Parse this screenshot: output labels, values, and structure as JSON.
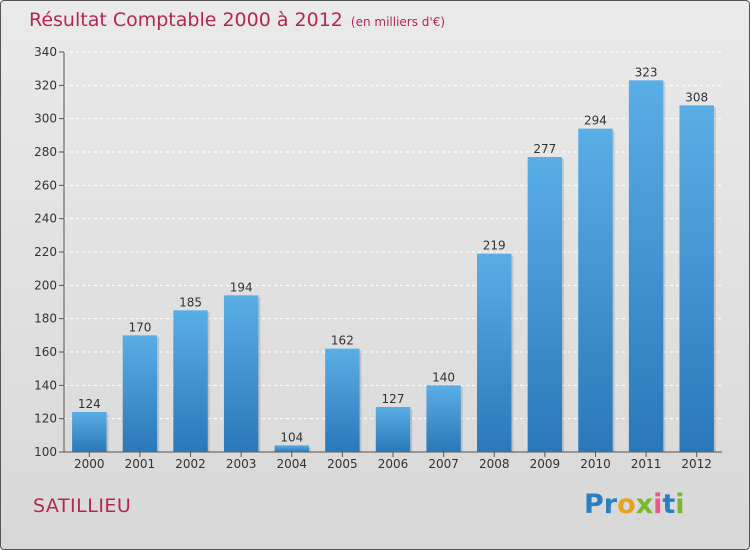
{
  "chart_data": {
    "type": "bar",
    "title": "Résultat Comptable 2000 à 2012",
    "subtitle": "(en milliers d'€)",
    "categories": [
      "2000",
      "2001",
      "2002",
      "2003",
      "2004",
      "2005",
      "2006",
      "2007",
      "2008",
      "2009",
      "2010",
      "2011",
      "2012"
    ],
    "values": [
      124,
      170,
      185,
      194,
      104,
      162,
      127,
      140,
      219,
      277,
      294,
      323,
      308
    ],
    "ylim": [
      100,
      340
    ],
    "yticks": [
      100,
      120,
      140,
      160,
      180,
      200,
      220,
      240,
      260,
      280,
      300,
      320,
      340
    ],
    "xlabel": "",
    "ylabel": "",
    "grid": true
  },
  "footer": {
    "commune": "SATILLIEU",
    "logo": [
      "P",
      "r",
      "o",
      "x",
      "i",
      "t",
      "i"
    ]
  },
  "colors": {
    "title": "#b5284e",
    "bar_top": "#5aaee6",
    "bar_bottom": "#2a78b8",
    "logo": [
      "#2a7fc4",
      "#2a7fc4",
      "#e8a21c",
      "#7ab82f",
      "#e85a8a",
      "#2a7fc4",
      "#7ab82f"
    ]
  }
}
